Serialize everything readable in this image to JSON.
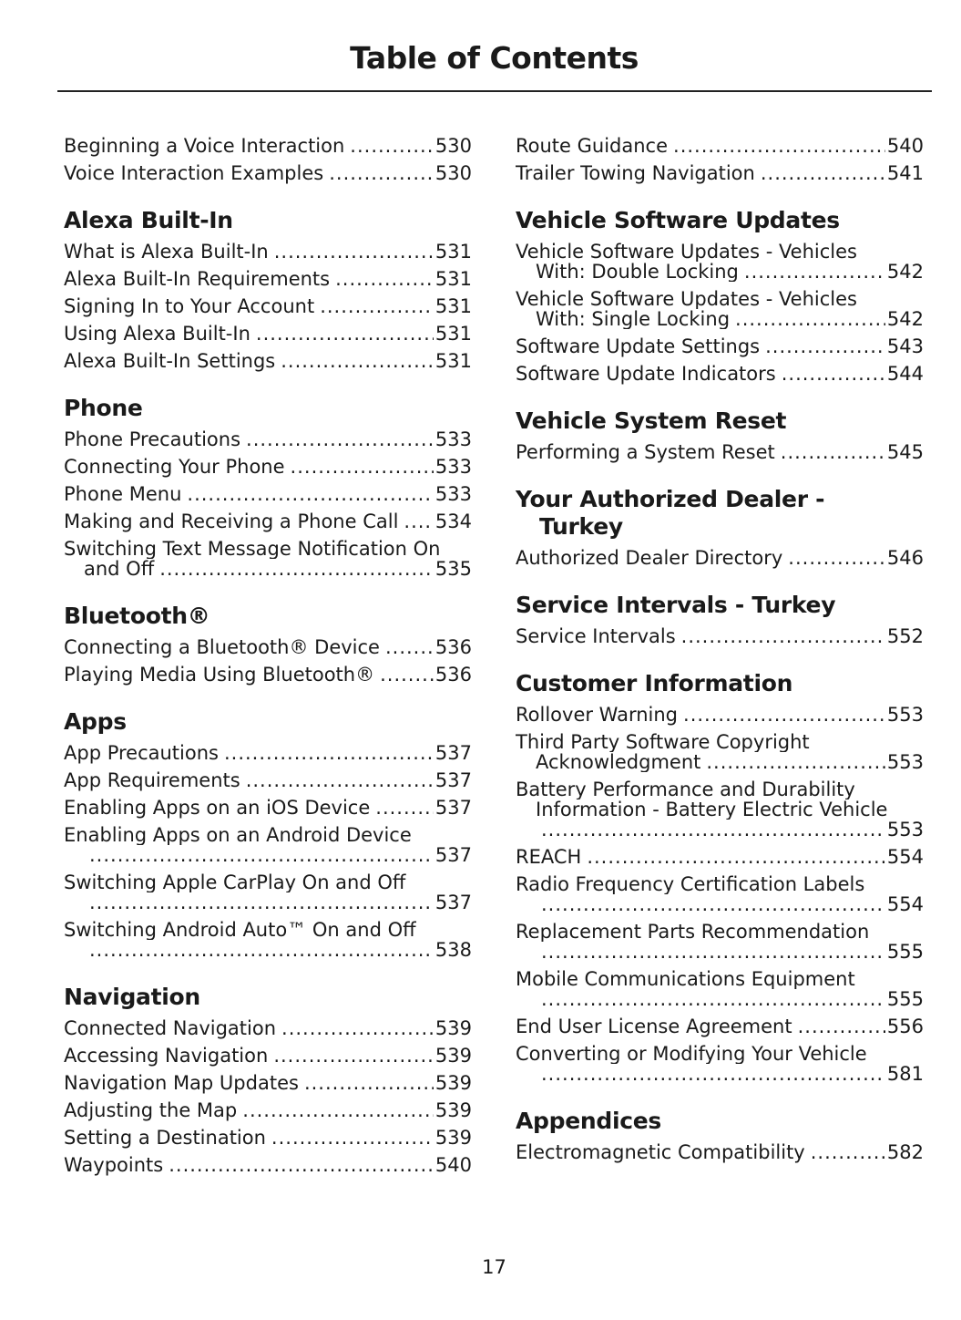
{
  "title": "Table of Contents",
  "page_number": "17",
  "left_column": [
    {
      "heading": null,
      "entries": [
        {
          "title": "Beginning a Voice Interaction",
          "page": "530"
        },
        {
          "title": "Voice Interaction Examples",
          "page": "530"
        }
      ]
    },
    {
      "heading": [
        "Alexa Built-In"
      ],
      "entries": [
        {
          "title": "What is Alexa Built-In",
          "page": "531"
        },
        {
          "title": "Alexa Built-In Requirements",
          "page": "531"
        },
        {
          "title": "Signing In to Your Account",
          "page": "531"
        },
        {
          "title": "Using Alexa Built-In",
          "page": "531"
        },
        {
          "title": "Alexa Built-In Settings",
          "page": "531"
        }
      ]
    },
    {
      "heading": [
        "Phone"
      ],
      "entries": [
        {
          "title": "Phone Precautions",
          "page": "533"
        },
        {
          "title": "Connecting Your Phone",
          "page": "533"
        },
        {
          "title": "Phone Menu",
          "page": "533"
        },
        {
          "title": "Making and Receiving a Phone Call",
          "page": "534"
        },
        {
          "title": "Switching Text Message Notification On",
          "cont": [
            "and Off"
          ],
          "page": "535"
        }
      ]
    },
    {
      "heading": [
        "Bluetooth®"
      ],
      "entries": [
        {
          "title": "Connecting a Bluetooth® Device",
          "page": "536"
        },
        {
          "title": "Playing Media Using Bluetooth®",
          "page": "536"
        }
      ]
    },
    {
      "heading": [
        "Apps"
      ],
      "entries": [
        {
          "title": "App Precautions",
          "page": "537"
        },
        {
          "title": "App Requirements",
          "page": "537"
        },
        {
          "title": "Enabling Apps on an iOS Device",
          "page": "537"
        },
        {
          "title": "Enabling Apps on an Android Device",
          "cont": [
            ""
          ],
          "page": "537"
        },
        {
          "title": "Switching Apple CarPlay On and Off",
          "cont": [
            ""
          ],
          "page": "537"
        },
        {
          "title": "Switching Android Auto™ On and Off",
          "cont": [
            ""
          ],
          "page": "538"
        }
      ]
    },
    {
      "heading": [
        "Navigation"
      ],
      "entries": [
        {
          "title": "Connected Navigation",
          "page": "539"
        },
        {
          "title": "Accessing Navigation",
          "page": "539"
        },
        {
          "title": "Navigation Map Updates",
          "page": "539"
        },
        {
          "title": "Adjusting the Map",
          "page": "539"
        },
        {
          "title": "Setting a Destination",
          "page": "539"
        },
        {
          "title": "Waypoints",
          "page": "540"
        }
      ]
    }
  ],
  "right_column": [
    {
      "heading": null,
      "entries": [
        {
          "title": "Route Guidance",
          "page": "540"
        },
        {
          "title": "Trailer Towing Navigation",
          "page": "541"
        }
      ]
    },
    {
      "heading": [
        "Vehicle Software Updates"
      ],
      "entries": [
        {
          "title": "Vehicle Software Updates - Vehicles",
          "cont": [
            "With: Double Locking"
          ],
          "page": "542"
        },
        {
          "title": "Vehicle Software Updates - Vehicles",
          "cont": [
            "With: Single Locking"
          ],
          "page": "542"
        },
        {
          "title": "Software Update Settings",
          "page": "543"
        },
        {
          "title": "Software Update Indicators",
          "page": "544"
        }
      ]
    },
    {
      "heading": [
        "Vehicle System Reset"
      ],
      "entries": [
        {
          "title": "Performing a System Reset",
          "page": "545"
        }
      ]
    },
    {
      "heading": [
        "Your Authorized Dealer -",
        "Turkey"
      ],
      "entries": [
        {
          "title": "Authorized Dealer Directory",
          "page": "546"
        }
      ]
    },
    {
      "heading": [
        "Service Intervals - Turkey"
      ],
      "entries": [
        {
          "title": "Service Intervals",
          "page": "552"
        }
      ]
    },
    {
      "heading": [
        "Customer Information"
      ],
      "entries": [
        {
          "title": "Rollover Warning",
          "page": "553"
        },
        {
          "title": "Third Party Software Copyright",
          "cont": [
            "Acknowledgment"
          ],
          "page": "553"
        },
        {
          "title": "Battery Performance and Durability",
          "cont": [
            "Information - Battery Electric Vehicle",
            ""
          ],
          "page": "553"
        },
        {
          "title": "REACH",
          "page": "554"
        },
        {
          "title": "Radio Frequency Certification Labels",
          "cont": [
            ""
          ],
          "page": "554"
        },
        {
          "title": "Replacement Parts Recommendation",
          "cont": [
            ""
          ],
          "page": "555"
        },
        {
          "title": "Mobile Communications Equipment",
          "cont": [
            ""
          ],
          "page": "555"
        },
        {
          "title": "End User License Agreement",
          "page": "556"
        },
        {
          "title": "Converting or Modifying Your Vehicle",
          "cont": [
            ""
          ],
          "page": "581"
        }
      ]
    },
    {
      "heading": [
        "Appendices"
      ],
      "entries": [
        {
          "title": "Electromagnetic Compatibility",
          "page": "582"
        }
      ]
    }
  ]
}
